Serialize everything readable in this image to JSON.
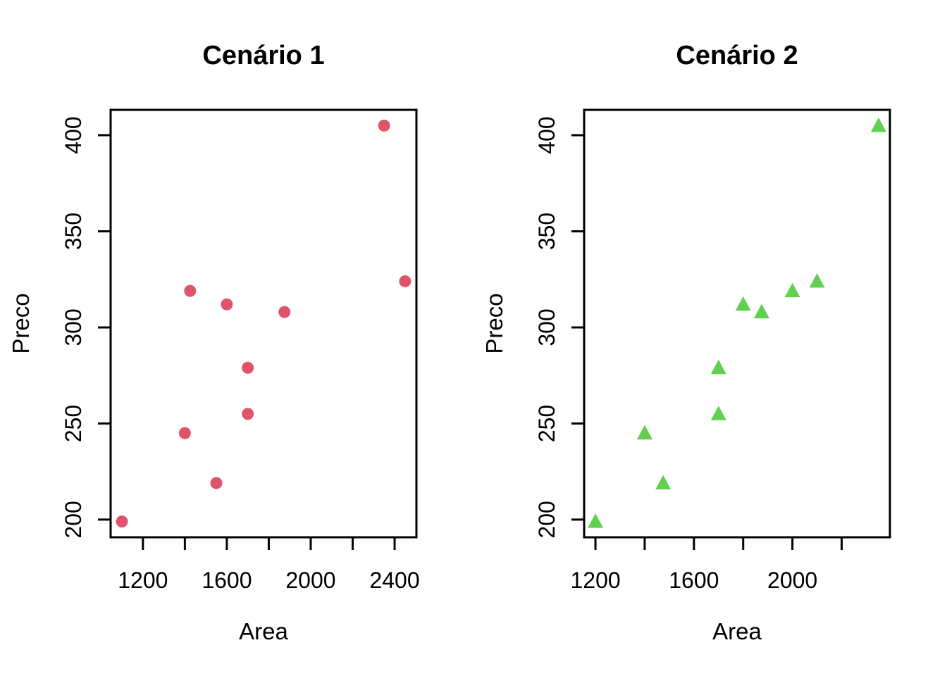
{
  "page": {
    "background": "#ffffff"
  },
  "chart_data": [
    {
      "type": "scatter",
      "title": "Cenário 1",
      "xlabel": "Area",
      "ylabel": "Preco",
      "marker": "filled-circle",
      "color": "#DF536B",
      "x": [
        1100,
        1400,
        1425,
        1550,
        1600,
        1700,
        1700,
        1875,
        2350,
        2450
      ],
      "y": [
        199,
        245,
        319,
        219,
        312,
        279,
        255,
        308,
        405,
        324
      ],
      "xlim": [
        1046,
        2504
      ],
      "ylim": [
        190.8,
        413.2
      ],
      "xticks": [
        1200,
        1400,
        1600,
        1800,
        2000,
        2200,
        2400
      ],
      "xtick_labels": [
        "1200",
        "",
        "1600",
        "",
        "2000",
        "",
        "2400"
      ],
      "yticks": [
        200,
        250,
        300,
        350,
        400
      ],
      "ytick_labels": [
        "200",
        "250",
        "300",
        "350",
        "400"
      ],
      "grid": false,
      "legend": "none"
    },
    {
      "type": "scatter",
      "title": "Cenário 2",
      "xlabel": "Area",
      "ylabel": "Preco",
      "marker": "filled-triangle",
      "color": "#61D04F",
      "x": [
        1200,
        1400,
        1475,
        1700,
        1700,
        1800,
        1875,
        2000,
        2100,
        2350
      ],
      "y": [
        199,
        245,
        219,
        255,
        279,
        312,
        308,
        319,
        324,
        405
      ],
      "xlim": [
        1154,
        2396
      ],
      "ylim": [
        190.8,
        413.2
      ],
      "xticks": [
        1200,
        1400,
        1600,
        1800,
        2000,
        2200
      ],
      "xtick_labels": [
        "1200",
        "",
        "1600",
        "",
        "2000",
        ""
      ],
      "yticks": [
        200,
        250,
        300,
        350,
        400
      ],
      "ytick_labels": [
        "200",
        "250",
        "300",
        "350",
        "400"
      ],
      "grid": false,
      "legend": "none"
    }
  ]
}
